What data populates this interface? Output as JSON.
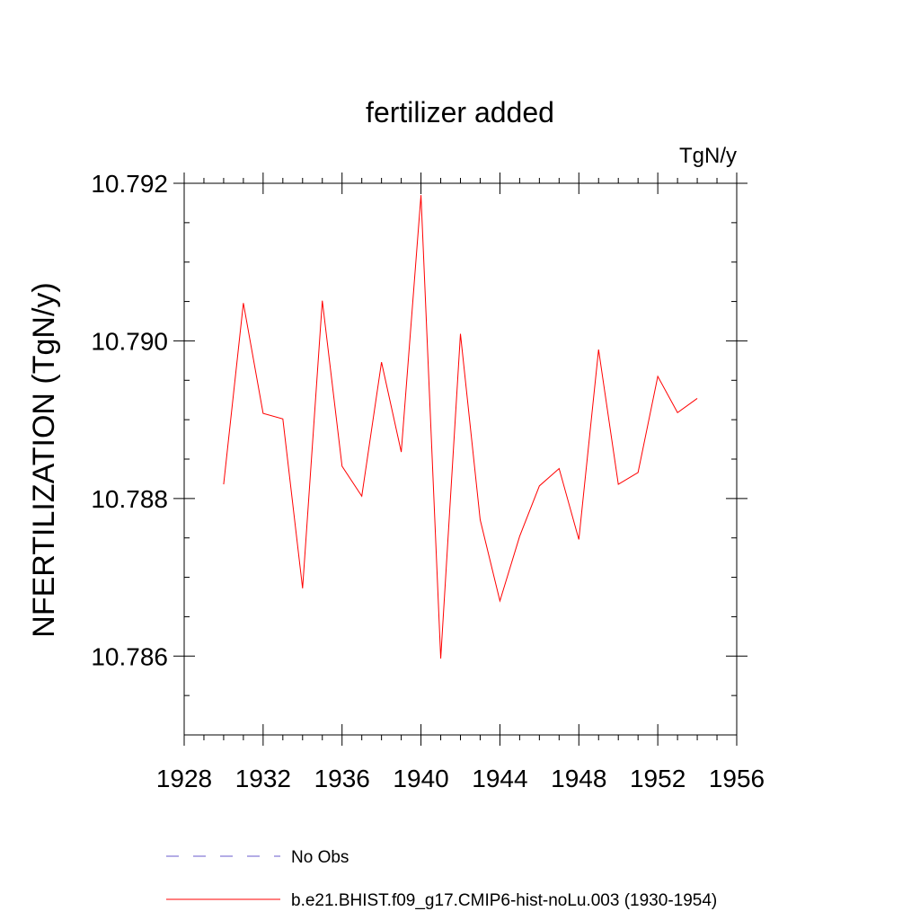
{
  "chart_data": {
    "type": "line",
    "title": "fertilizer added",
    "units_label": "TgN/y",
    "xlabel": "",
    "ylabel": "NFERTILIZATION  (TgN/y)",
    "xlim": [
      1928,
      1956
    ],
    "ylim": [
      10.785,
      10.792
    ],
    "x_major_ticks": [
      1928,
      1932,
      1936,
      1940,
      1944,
      1948,
      1952,
      1956
    ],
    "x_minor_step": 1,
    "y_major_ticks": [
      10.786,
      10.788,
      10.79,
      10.792
    ],
    "y_tick_labels": [
      "10.786",
      "10.788",
      "10.790",
      "10.792"
    ],
    "y_minor_step": 0.0005,
    "grid": false,
    "legend_position": "bottom",
    "series": [
      {
        "name": "No Obs",
        "color": "#6a5acd",
        "dash": "dashed",
        "x": [],
        "values": []
      },
      {
        "name": "b.e21.BHIST.f09_g17.CMIP6-hist-noLu.003 (1930-1954)",
        "color": "#ff0000",
        "dash": "solid",
        "x": [
          1930,
          1931,
          1932,
          1933,
          1934,
          1935,
          1936,
          1937,
          1938,
          1939,
          1940,
          1941,
          1942,
          1943,
          1944,
          1945,
          1946,
          1947,
          1948,
          1949,
          1950,
          1951,
          1952,
          1953,
          1954
        ],
        "values": [
          10.78818,
          10.79048,
          10.78908,
          10.78901,
          10.78686,
          10.79051,
          10.78841,
          10.78803,
          10.78973,
          10.78859,
          10.79185,
          10.78597,
          10.79009,
          10.78773,
          10.7867,
          10.78752,
          10.78816,
          10.78838,
          10.78748,
          10.78989,
          10.78818,
          10.78833,
          10.78955,
          10.78909,
          10.78927
        ]
      }
    ]
  }
}
